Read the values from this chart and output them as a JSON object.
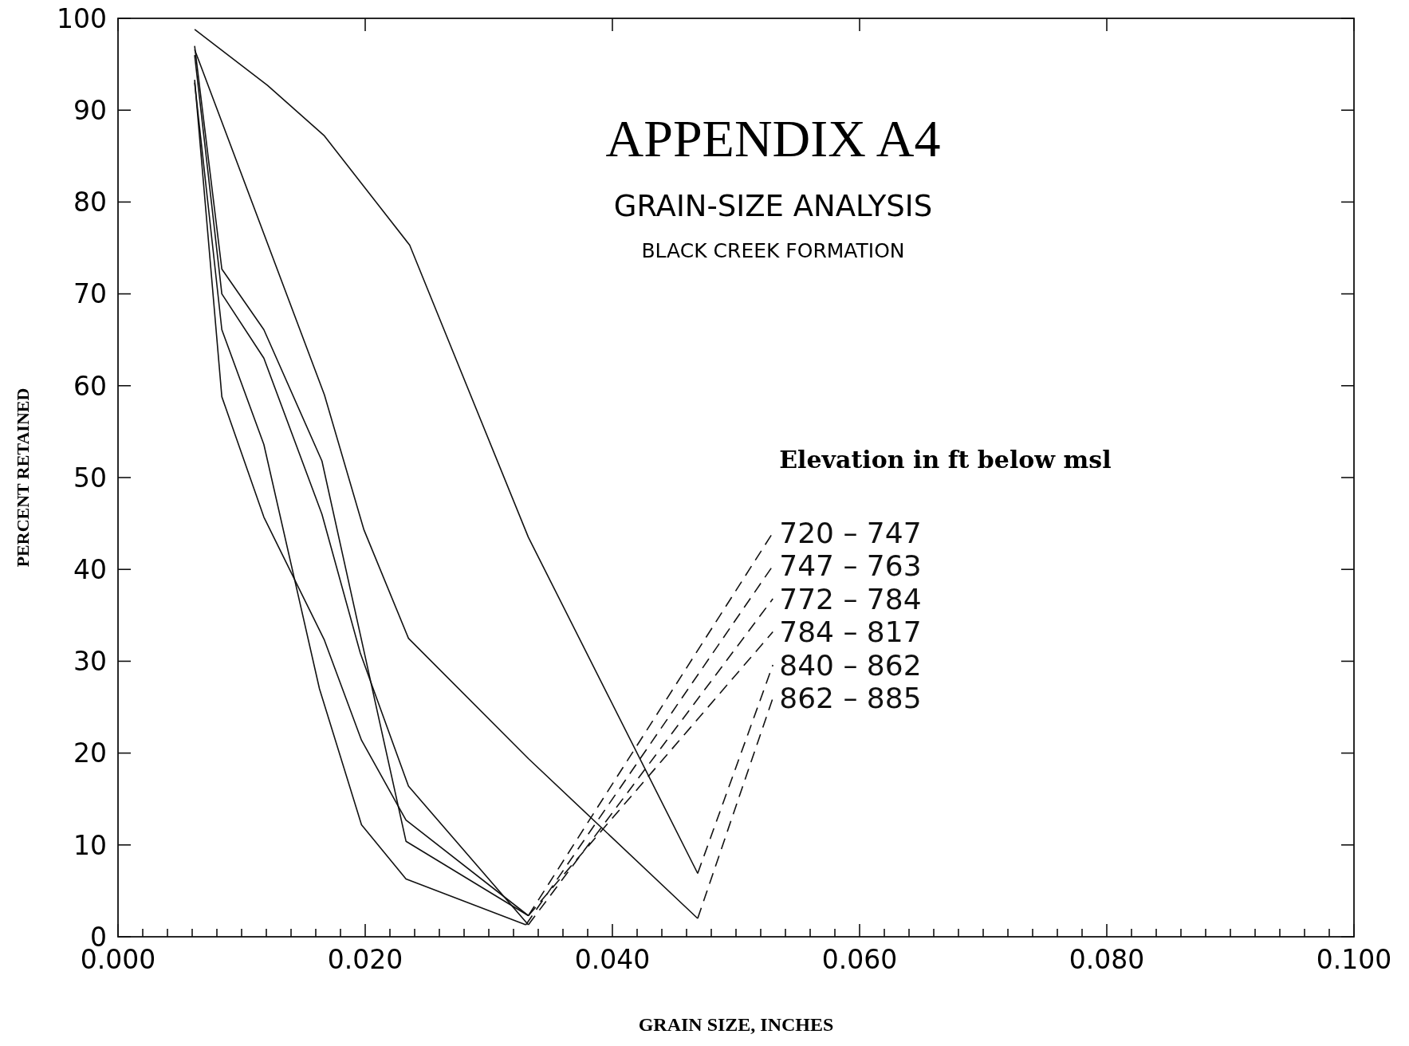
{
  "chart_data": {
    "type": "line",
    "title": "APPENDIX A4",
    "subtitle": "GRAIN-SIZE ANALYSIS",
    "annotations": [
      "BLACK CREEK FORMATION"
    ],
    "xlabel": "GRAIN SIZE, INCHES",
    "ylabel": "PERCENT RETAINED",
    "legend_title": "Elevation in ft below msl",
    "legend": "center",
    "grid": false,
    "marker": "none",
    "line_style": "solid",
    "xlim": [
      0,
      0.1
    ],
    "ylim": [
      0,
      100
    ],
    "xticks": [
      {
        "value": 0,
        "label": "0.000"
      },
      {
        "value": 0.002,
        "label": null
      },
      {
        "value": 0.004,
        "label": null
      },
      {
        "value": 0.006,
        "label": null
      },
      {
        "value": 0.008,
        "label": null
      },
      {
        "value": 0.01,
        "label": null
      },
      {
        "value": 0.012,
        "label": null
      },
      {
        "value": 0.014,
        "label": null
      },
      {
        "value": 0.016,
        "label": null
      },
      {
        "value": 0.018,
        "label": null
      },
      {
        "value": 0.02,
        "label": "0.020"
      },
      {
        "value": 0.022,
        "label": null
      },
      {
        "value": 0.024,
        "label": null
      },
      {
        "value": 0.026,
        "label": null
      },
      {
        "value": 0.028,
        "label": null
      },
      {
        "value": 0.03,
        "label": null
      },
      {
        "value": 0.032,
        "label": null
      },
      {
        "value": 0.034,
        "label": null
      },
      {
        "value": 0.036,
        "label": null
      },
      {
        "value": 0.038,
        "label": null
      },
      {
        "value": 0.04,
        "label": "0.040"
      },
      {
        "value": 0.042,
        "label": null
      },
      {
        "value": 0.044,
        "label": null
      },
      {
        "value": 0.046,
        "label": null
      },
      {
        "value": 0.048,
        "label": null
      },
      {
        "value": 0.05,
        "label": null
      },
      {
        "value": 0.052,
        "label": null
      },
      {
        "value": 0.054,
        "label": null
      },
      {
        "value": 0.056,
        "label": null
      },
      {
        "value": 0.058,
        "label": null
      },
      {
        "value": 0.06,
        "label": "0.060"
      },
      {
        "value": 0.062,
        "label": null
      },
      {
        "value": 0.064,
        "label": null
      },
      {
        "value": 0.066,
        "label": null
      },
      {
        "value": 0.068,
        "label": null
      },
      {
        "value": 0.07,
        "label": null
      },
      {
        "value": 0.072,
        "label": null
      },
      {
        "value": 0.074,
        "label": null
      },
      {
        "value": 0.076,
        "label": null
      },
      {
        "value": 0.078,
        "label": null
      },
      {
        "value": 0.08,
        "label": "0.080"
      },
      {
        "value": 0.082,
        "label": null
      },
      {
        "value": 0.084,
        "label": null
      },
      {
        "value": 0.086,
        "label": null
      },
      {
        "value": 0.088,
        "label": null
      },
      {
        "value": 0.09,
        "label": null
      },
      {
        "value": 0.092,
        "label": null
      },
      {
        "value": 0.094,
        "label": null
      },
      {
        "value": 0.096,
        "label": null
      },
      {
        "value": 0.098,
        "label": null
      },
      {
        "value": 0.1,
        "label": "0.100"
      }
    ],
    "yticks": [
      0,
      10,
      20,
      30,
      40,
      50,
      60,
      70,
      80,
      90,
      100
    ],
    "series": [
      {
        "name": "720 – 747",
        "color": "#111111",
        "x": [
          0.0062,
          0.0084,
          0.0118,
          0.0165,
          0.0233,
          0.0332
        ],
        "values": [
          97,
          72.7,
          66.1,
          51.8,
          10.4,
          2.3
        ]
      },
      {
        "name": "747 – 763",
        "color": "#111111",
        "x": [
          0.0062,
          0.0084,
          0.0118,
          0.0163,
          0.0197,
          0.0233,
          0.033
        ],
        "values": [
          93,
          66.1,
          53.6,
          27,
          12.2,
          6.3,
          1.3
        ]
      },
      {
        "name": "772 – 784",
        "color": "#111111",
        "x": [
          0.0062,
          0.0084,
          0.0118,
          0.0165,
          0.0196,
          0.0235,
          0.0332
        ],
        "values": [
          96,
          70,
          63,
          46,
          30.9,
          16.4,
          1.3
        ]
      },
      {
        "name": "784 – 817",
        "color": "#111111",
        "x": [
          0.0062,
          0.0084,
          0.0118,
          0.0167,
          0.0197,
          0.0233,
          0.0332
        ],
        "values": [
          93.3,
          58.8,
          45.7,
          32.3,
          21.4,
          12.7,
          2.3
        ]
      },
      {
        "name": "840 – 862",
        "color": "#111111",
        "x": [
          0.0062,
          0.0121,
          0.0167,
          0.0236,
          0.0332,
          0.0469
        ],
        "values": [
          98.8,
          92.7,
          87.2,
          75.3,
          43.5,
          6.9
        ]
      },
      {
        "name": "862 – 885",
        "color": "#111111",
        "x": [
          0.0062,
          0.0167,
          0.0199,
          0.0235,
          0.0332,
          0.0469
        ],
        "values": [
          96.6,
          59,
          44.3,
          32.5,
          19.4,
          2
        ]
      }
    ]
  }
}
